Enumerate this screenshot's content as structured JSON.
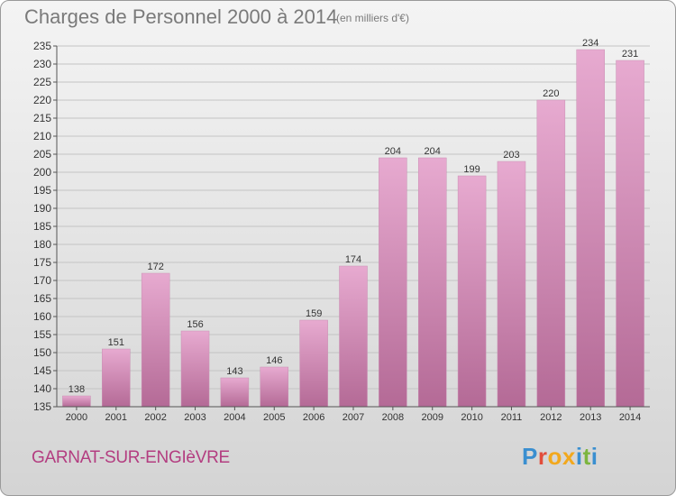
{
  "header": {
    "title": "Charges de Personnel 2000 à 2014",
    "subtitle": "(en milliers d'€)"
  },
  "footer": {
    "place": "GARNAT-SUR-ENGIèVRE",
    "logo": "Proxiti",
    "logo_colors": [
      "#3a8fd0",
      "#e24d3b",
      "#f2a81d",
      "#f2a81d",
      "#3a8fd0",
      "#7cb53f",
      "#3a8fd0"
    ]
  },
  "chart_data": {
    "type": "bar",
    "title": "Charges de Personnel 2000 à 2014",
    "subtitle": "(en milliers d'€)",
    "categories": [
      "2000",
      "2001",
      "2002",
      "2003",
      "2004",
      "2005",
      "2006",
      "2007",
      "2008",
      "2009",
      "2010",
      "2011",
      "2012",
      "2013",
      "2014"
    ],
    "values": [
      138,
      151,
      172,
      156,
      143,
      146,
      159,
      174,
      204,
      204,
      199,
      203,
      220,
      234,
      231
    ],
    "ylim": [
      135,
      235
    ],
    "yticks": [
      135,
      140,
      145,
      150,
      155,
      160,
      165,
      170,
      175,
      180,
      185,
      190,
      195,
      200,
      205,
      210,
      215,
      220,
      225,
      230,
      235
    ],
    "grid": true,
    "bar_color": "#d88ab8"
  }
}
